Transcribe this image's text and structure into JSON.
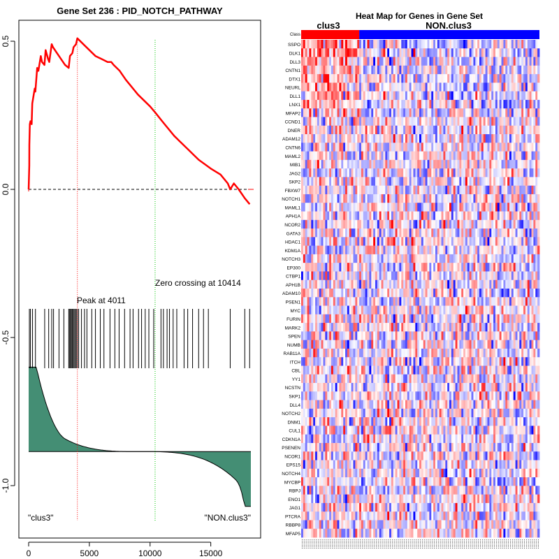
{
  "chart_data": [
    {
      "type": "line",
      "title": "Gene Set  236 : PID_NOTCH_PATHWAY",
      "xlabel": "",
      "ylabel": "",
      "xlim": [
        0,
        18500
      ],
      "ylim": [
        -1.1,
        0.55
      ],
      "x_ticks": [
        0,
        5000,
        10000,
        15000
      ],
      "x_tick_labels": [
        "0",
        "5000",
        "10000",
        "15000"
      ],
      "y_ticks": [
        0.5,
        0.0,
        -0.5,
        -1.0
      ],
      "y_tick_labels": [
        "0.5",
        "0.0",
        "-0.5",
        "-1.0"
      ],
      "enrichment_curve": {
        "name": "running enrichment score",
        "color": "#ff0000",
        "x": [
          0,
          50,
          60,
          100,
          150,
          250,
          300,
          500,
          550,
          700,
          800,
          1000,
          1100,
          1300,
          1400,
          1600,
          1700,
          1900,
          2000,
          2500,
          3000,
          3300,
          3400,
          3600,
          3700,
          3900,
          4011,
          4500,
          5000,
          5500,
          6000,
          6500,
          6800,
          7000,
          7500,
          8000,
          9000,
          10000,
          10414,
          11000,
          12000,
          13000,
          14000,
          15000,
          15800,
          16400,
          16600,
          16900,
          17300,
          17800,
          18200
        ],
        "y": [
          0.0,
          0.08,
          0.15,
          0.22,
          0.23,
          0.22,
          0.29,
          0.34,
          0.33,
          0.41,
          0.4,
          0.45,
          0.43,
          0.42,
          0.47,
          0.44,
          0.43,
          0.49,
          0.48,
          0.45,
          0.42,
          0.41,
          0.45,
          0.46,
          0.48,
          0.49,
          0.51,
          0.49,
          0.47,
          0.45,
          0.44,
          0.43,
          0.43,
          0.42,
          0.4,
          0.37,
          0.32,
          0.28,
          0.26,
          0.23,
          0.18,
          0.14,
          0.1,
          0.07,
          0.05,
          0.02,
          0.0,
          0.02,
          0.0,
          -0.03,
          -0.05
        ]
      },
      "zero_line": {
        "y": 0.0,
        "style": "dashed"
      },
      "peak": {
        "x": 4011,
        "label": "Peak at 4011",
        "color": "#ff0000"
      },
      "zero_crossing": {
        "x": 10414,
        "label": "Zero crossing at 10414",
        "color": "#00c800"
      },
      "hit_positions": [
        60,
        150,
        320,
        560,
        1320,
        1650,
        1900,
        2050,
        2500,
        2900,
        3300,
        3380,
        3450,
        3520,
        3600,
        3680,
        3750,
        3850,
        3920,
        4011,
        4120,
        4350,
        4600,
        4800,
        5200,
        5500,
        5900,
        6200,
        6700,
        7100,
        7450,
        7900,
        8350,
        8600,
        9050,
        9300,
        9600,
        9900,
        10300,
        10900,
        11100,
        11400,
        11600,
        11900,
        12200,
        12800,
        13100,
        13500,
        14000,
        14400,
        14800,
        16600,
        17800,
        18200
      ],
      "ranked_metric": {
        "color_fill": "#448e74",
        "baseline": -0.885,
        "max": -0.6,
        "min": -1.07,
        "n": 18300
      },
      "class_labels": {
        "left": "\"clus3\"",
        "right": "\"NON.clus3\""
      }
    },
    {
      "type": "heatmap",
      "title": "Heat Map for Genes in Gene Set",
      "row_label_header": "Class",
      "classes": [
        {
          "name": "clus3",
          "color": "#ff0000",
          "columns": 29
        },
        {
          "name": "NON.clus3",
          "color": "#0000ff",
          "columns": 90
        }
      ],
      "genes": [
        "SSPO",
        "DLK1",
        "DLL3",
        "CNTN1",
        "DTX1",
        "NEURL",
        "DLL1",
        "LNX1",
        "MFAP2",
        "CCND1",
        "DNER",
        "ADAM12",
        "CNTN6",
        "MAML2",
        "MIB1",
        "JAG2",
        "SKP2",
        "FBXW7",
        "NOTCH1",
        "MAML1",
        "APH1A",
        "NCOR2",
        "GATA3",
        "HDAC1",
        "KDM1A",
        "NOTCH3",
        "EP300",
        "CTBP1",
        "APH1B",
        "ADAM10",
        "PSEN1",
        "MYC",
        "FURIN",
        "MARK2",
        "SPEN",
        "NUMB",
        "RAB11A",
        "ITCH",
        "CBL",
        "YY1",
        "NCSTN",
        "SKP1",
        "DLL4",
        "NOTCH2",
        "DNM1",
        "CUL1",
        "CDKN1A",
        "PSENEN",
        "NCOR1",
        "EPS15",
        "NOTCH4",
        "MYCBP",
        "RBPJ",
        "ENO1",
        "JAG1",
        "PTCRA",
        "RBBP8",
        "MFAP5"
      ],
      "value_range": [
        -1,
        1
      ],
      "colormap": [
        "#0000ff",
        "#ffffff",
        "#ff0000"
      ]
    }
  ]
}
